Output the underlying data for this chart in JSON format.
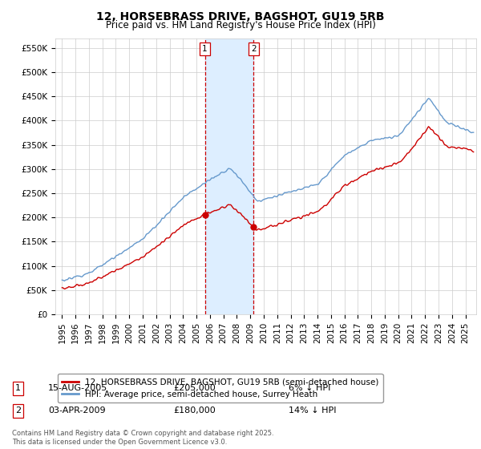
{
  "title": "12, HORSEBRASS DRIVE, BAGSHOT, GU19 5RB",
  "subtitle": "Price paid vs. HM Land Registry's House Price Index (HPI)",
  "legend_line1": "12, HORSEBRASS DRIVE, BAGSHOT, GU19 5RB (semi-detached house)",
  "legend_line2": "HPI: Average price, semi-detached house, Surrey Heath",
  "footnote": "Contains HM Land Registry data © Crown copyright and database right 2025.\nThis data is licensed under the Open Government Licence v3.0.",
  "purchase1_label": "1",
  "purchase1_date": "15-AUG-2005",
  "purchase1_price": "£205,000",
  "purchase1_hpi": "6% ↓ HPI",
  "purchase2_label": "2",
  "purchase2_date": "03-APR-2009",
  "purchase2_price": "£180,000",
  "purchase2_hpi": "14% ↓ HPI",
  "purchase1_x": 2005.62,
  "purchase1_y": 205000,
  "purchase2_x": 2009.25,
  "purchase2_y": 180000,
  "shade_x1": 2005.62,
  "shade_x2": 2009.25,
  "ylim_min": 0,
  "ylim_max": 570000,
  "yticks": [
    0,
    50000,
    100000,
    150000,
    200000,
    250000,
    300000,
    350000,
    400000,
    450000,
    500000,
    550000
  ],
  "ytick_labels": [
    "£0",
    "£50K",
    "£100K",
    "£150K",
    "£200K",
    "£250K",
    "£300K",
    "£350K",
    "£400K",
    "£450K",
    "£500K",
    "£550K"
  ],
  "red_color": "#cc0000",
  "blue_color": "#6699cc",
  "shade_color": "#ddeeff",
  "vline_color": "#cc0000",
  "background_color": "#ffffff",
  "grid_color": "#cccccc",
  "xlim_min": 1994.5,
  "xlim_max": 2025.8,
  "year_ticks": [
    1995,
    1996,
    1997,
    1998,
    1999,
    2000,
    2001,
    2002,
    2003,
    2004,
    2005,
    2006,
    2007,
    2008,
    2009,
    2010,
    2011,
    2012,
    2013,
    2014,
    2015,
    2016,
    2017,
    2018,
    2019,
    2020,
    2021,
    2022,
    2023,
    2024,
    2025
  ]
}
